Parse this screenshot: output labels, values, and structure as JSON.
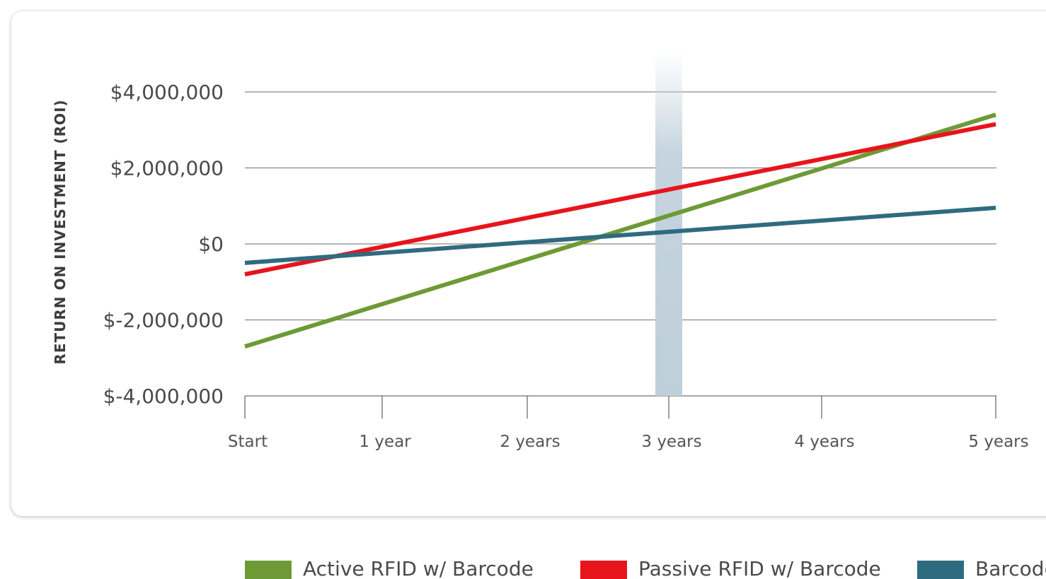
{
  "chart_data": {
    "type": "line",
    "title": "",
    "xlabel": "",
    "ylabel": "RETURN ON INVESTMENT (ROI)",
    "categories": [
      "Start",
      "1 year",
      "2 years",
      "3 years",
      "4 years",
      "5 years"
    ],
    "x": [
      0,
      1,
      2,
      3,
      4,
      5
    ],
    "xlim": [
      0,
      5
    ],
    "ylim": [
      -4000000,
      4000000
    ],
    "yticks": [
      4000000,
      2000000,
      0,
      -2000000,
      -4000000
    ],
    "ytick_labels": [
      "$4,000,000",
      "$2,000,000",
      "$0",
      "$-2,000,000",
      "$-4,000,000"
    ],
    "grid": "horizontal",
    "legend_position": "bottom",
    "highlight": {
      "x": 3
    },
    "series": [
      {
        "name": "Active RFID w/ Barcode",
        "color": "#6e9a36",
        "start": -2700000,
        "end": 3400000
      },
      {
        "name": "Passive RFID w/ Barcode",
        "color": "#e8141c",
        "start": -800000,
        "end": 3150000
      },
      {
        "name": "Barcode",
        "color": "#2f6b80",
        "start": -500000,
        "end": 950000
      }
    ]
  }
}
